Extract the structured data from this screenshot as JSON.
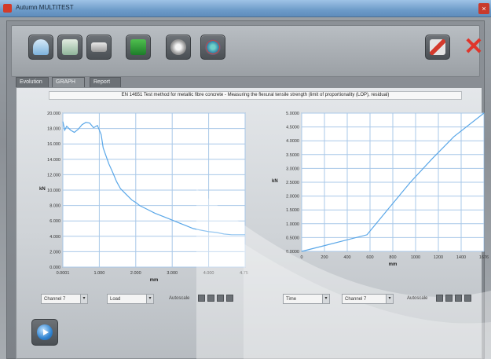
{
  "window": {
    "title": "Autumn MULTITEST"
  },
  "toolbar": {
    "buttons": [
      {
        "icon": "info-icon"
      },
      {
        "icon": "export-icon"
      },
      {
        "icon": "camera-icon"
      },
      {
        "icon": "excel-icon"
      },
      {
        "icon": "settings-icon"
      },
      {
        "icon": "gauge-icon"
      },
      {
        "icon": "tools-icon"
      }
    ]
  },
  "tabs": [
    {
      "label": "Evolution",
      "active": false
    },
    {
      "label": "GRAPH",
      "active": true
    },
    {
      "label": "Report",
      "active": false
    }
  ],
  "method_title": "EN 14651 Test method for metallic fibre concrete - Measuring the flexural tensile strength (limit of proportionality (LOP), residual)",
  "colors": {
    "line": "#5aa7e8",
    "grid": "#a9c8e8",
    "plot_bg": "#ffffff"
  },
  "chart_data": [
    {
      "type": "line",
      "ylabel": "kN",
      "xlabel": "mm",
      "xlim": [
        0.0001,
        4.75
      ],
      "ylim": [
        0,
        20
      ],
      "x_ticks": [
        "0.0001",
        "1.000",
        "2.000",
        "3.000",
        "4.000",
        "4.750"
      ],
      "y_ticks": [
        "0.000",
        "2.000",
        "4.000",
        "6.000",
        "8.000",
        "10.000",
        "12.000",
        "14.000",
        "16.000",
        "18.000",
        "20.000"
      ],
      "series": [
        {
          "x": [
            0.0001,
            0.05,
            0.1,
            0.2,
            0.3,
            0.4,
            0.5,
            0.6,
            0.7,
            0.8,
            0.9,
            1.0,
            1.05,
            1.1,
            1.2,
            1.3,
            1.4,
            1.5,
            1.6,
            1.7,
            1.8,
            1.9,
            2.0,
            2.2,
            2.4,
            2.6,
            2.8,
            3.0,
            3.2,
            3.4,
            3.6,
            3.8,
            4.0,
            4.2,
            4.4,
            4.75
          ],
          "y": [
            18.9,
            17.8,
            18.3,
            17.8,
            17.5,
            17.9,
            18.5,
            18.8,
            18.7,
            18.1,
            18.4,
            17.2,
            15.5,
            14.8,
            13.4,
            12.3,
            11.1,
            10.2,
            9.7,
            9.2,
            8.7,
            8.4,
            8.0,
            7.5,
            7.0,
            6.6,
            6.2,
            5.8,
            5.4,
            5.0,
            4.8,
            4.6,
            4.5,
            4.3,
            4.2,
            4.2
          ]
        }
      ]
    },
    {
      "type": "line",
      "ylabel": "kN",
      "xlabel": "mm",
      "xlim": [
        0,
        1676
      ],
      "ylim": [
        0,
        5
      ],
      "x_ticks": [
        "0",
        "200",
        "400",
        "600",
        "800",
        "1000",
        "1200",
        "1400",
        "1676"
      ],
      "y_ticks": [
        "0.0000",
        "0.5000",
        "1.0000",
        "1.5000",
        "2.0000",
        "2.5000",
        "3.0000",
        "3.5000",
        "4.0000",
        "4.5000",
        "5.0000"
      ],
      "series": [
        {
          "x": [
            0,
            200,
            400,
            600,
            800,
            1000,
            1200,
            1400,
            1676
          ],
          "y": [
            0.0,
            0.2,
            0.4,
            0.6,
            1.55,
            2.5,
            3.35,
            4.15,
            5.0
          ]
        }
      ]
    }
  ],
  "bottom": {
    "left": {
      "channel": "Channel 7",
      "quantity": "Load",
      "autoscale_label": "Autoscale"
    },
    "right": {
      "quantity": "Time",
      "channel": "Channel 7",
      "autoscale_label": "Autoscale"
    }
  }
}
